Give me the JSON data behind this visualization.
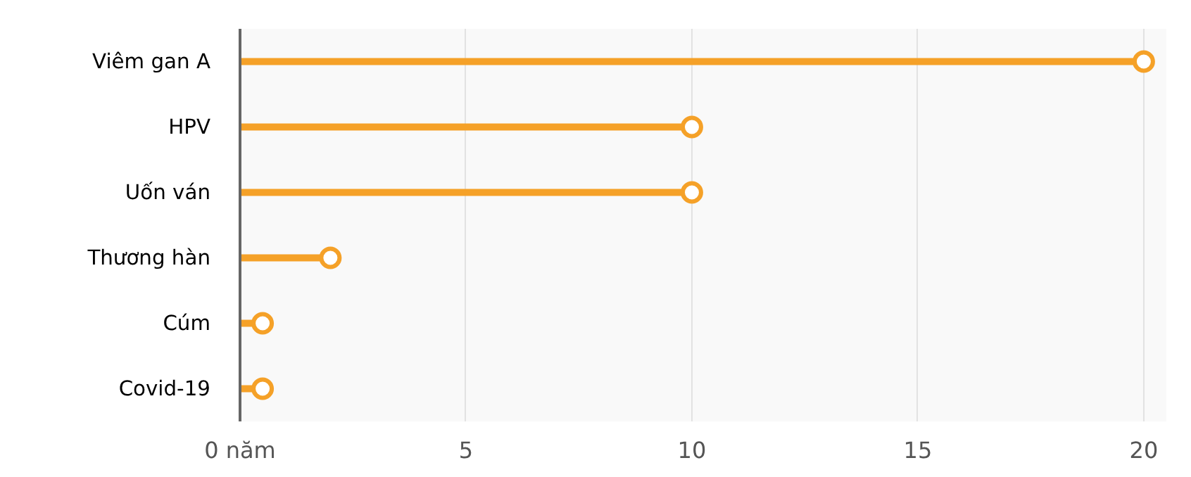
{
  "chart_data": {
    "type": "lollipop",
    "orientation": "horizontal",
    "categories": [
      "Viêm gan A",
      "HPV",
      "Uốn ván",
      "Thương hàn",
      "Cúm",
      "Covid-19"
    ],
    "values": [
      20,
      10,
      10,
      2,
      0.5,
      0.5
    ],
    "color": "#f5a128",
    "marker": "circle",
    "xlim": [
      0,
      20.5
    ],
    "xticks": [
      {
        "value": 0,
        "label": "0 năm"
      },
      5,
      10,
      15,
      20
    ],
    "grid": "x"
  }
}
